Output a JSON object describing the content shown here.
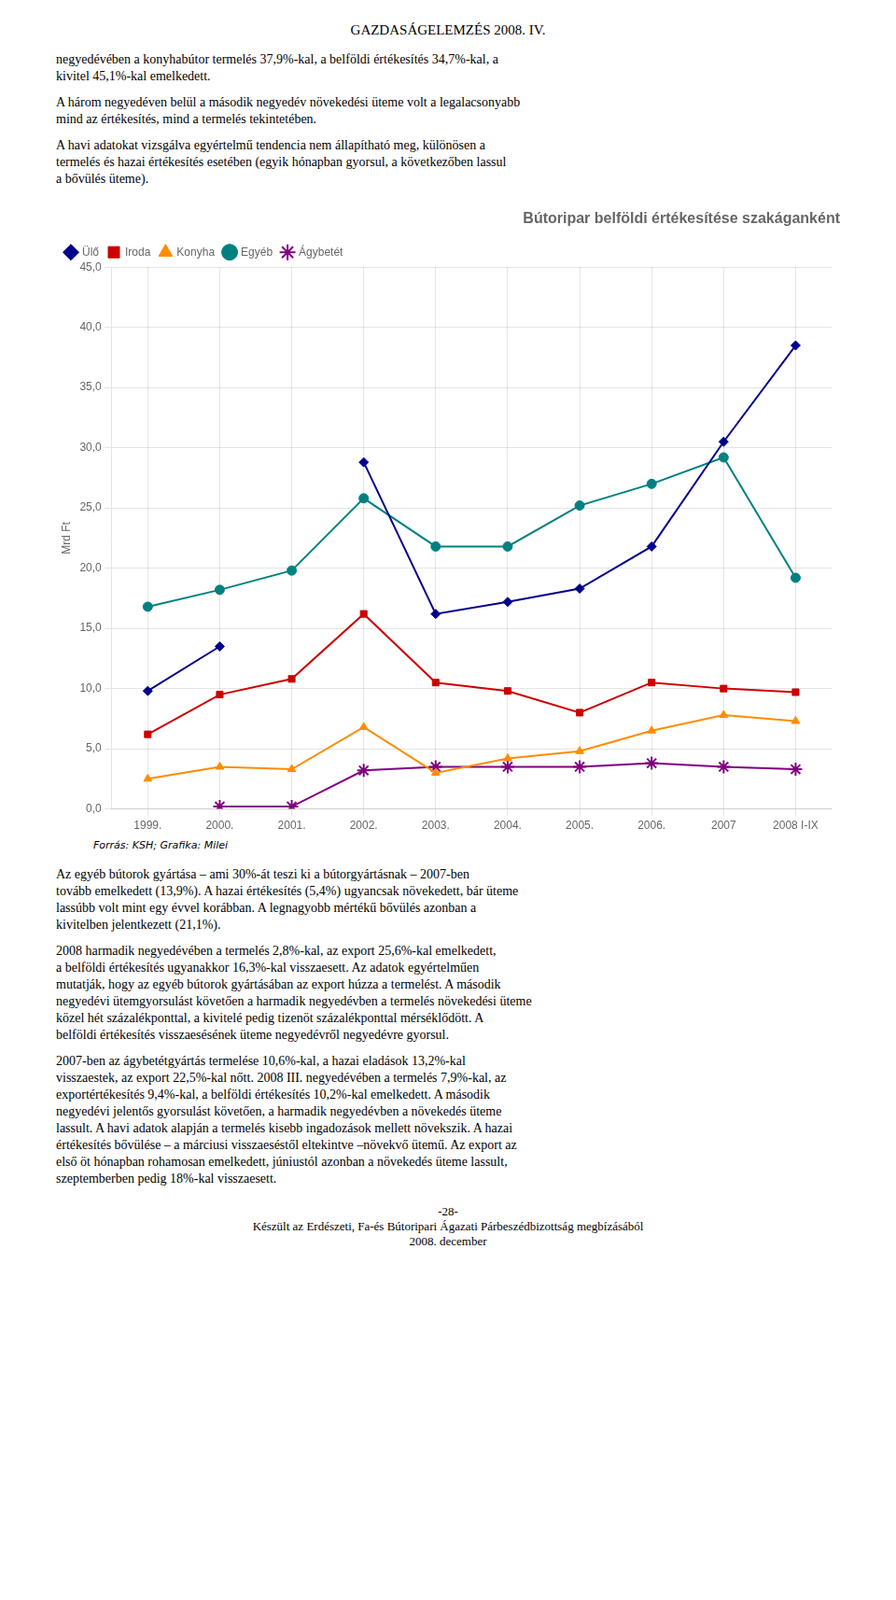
{
  "chart_data": {
    "type": "line",
    "title": "Bútoripar belföldi értékesítése szakáganként",
    "y_label": "Mrd Ft",
    "categories": [
      "1999.",
      "2000.",
      "2001.",
      "2002.",
      "2003.",
      "2004.",
      "2005.",
      "2006.",
      "2007",
      "2008 I-IX"
    ],
    "series": [
      {
        "name": "Ülő",
        "color": "#00008B",
        "marker": "diamond",
        "values": [
          9.8,
          13.5,
          null,
          28.8,
          16.2,
          17.2,
          18.3,
          21.8,
          30.5,
          38.5
        ]
      },
      {
        "name": "Iroda",
        "color": "#CC0000",
        "marker": "square",
        "values": [
          6.2,
          9.5,
          10.8,
          16.2,
          10.5,
          9.8,
          8.0,
          10.5,
          10.0,
          9.7
        ]
      },
      {
        "name": "Konyha",
        "color": "#FF8C00",
        "marker": "triangle",
        "values": [
          2.5,
          3.5,
          3.3,
          6.8,
          3.0,
          4.2,
          4.8,
          6.5,
          7.8,
          7.3
        ]
      },
      {
        "name": "Egyéb",
        "color": "#008080",
        "marker": "circle",
        "values": [
          16.8,
          18.2,
          19.8,
          25.8,
          21.8,
          21.8,
          25.2,
          27.0,
          29.2,
          19.2
        ]
      },
      {
        "name": "Ágybetét",
        "color": "#800080",
        "marker": "star",
        "values": [
          null,
          0.2,
          0.2,
          3.2,
          3.5,
          3.5,
          3.5,
          3.8,
          3.5,
          3.3
        ]
      }
    ],
    "ylim": [
      0,
      45
    ],
    "yticks": [
      {
        "value": 0,
        "label": "0,0"
      },
      {
        "value": 5,
        "label": "5,0"
      },
      {
        "value": 10,
        "label": "10,0"
      },
      {
        "value": 15,
        "label": "15,0"
      },
      {
        "value": 20,
        "label": "20,0"
      },
      {
        "value": 25,
        "label": "25,0"
      },
      {
        "value": 30,
        "label": "30,0"
      },
      {
        "value": 35,
        "label": "35,0"
      },
      {
        "value": 40,
        "label": "40,0"
      },
      {
        "value": 45,
        "label": "45,0"
      }
    ],
    "grid": true,
    "legend": "upper left",
    "annotations": [
      "GAZDASÁGELEMZÉS 2008. IV.",
      "negyedévében a konyhabútor termelés 37,9%-kal, a belföldi értékesítés 34,7%-kal, a\nkivitel 45,1%-kal emelkedett.",
      "A három negyedéven belül a második negyedév növekedési üteme volt a legalacsonyabb\nmind az értékesítés, mind a termelés tekintetében.",
      "A havi adatokat vizsgálva egyértelmű tendencia nem állapítható meg, különösen a\ntermelés és hazai értékesítés esetében (egyik hónapban gyorsul, a következőben lassul\na bővülés üteme).",
      "Forrás: KSH; Grafika: Milei",
      "Az egyéb bútorok gyártása – ami 30%-át teszi ki a bútorgyártásnak – 2007-ben\ntovább emelkedett (13,9%). A hazai értékesítés (5,4%) ugyancsak növekedett, bár üteme\nlassúbb volt mint egy évvel korábban. A legnagyobb mértékű bővülés azonban a\nkivitelben jelentkezett (21,1%).",
      "2008 harmadik negyedévében a termelés 2,8%-kal, az export 25,6%-kal emelkedett,\na belföldi értékesítés ugyanakkor 16,3%-kal visszaesett. Az adatok egyértelműen\nmutatják, hogy az egyéb bútorok gyártásában az export húzza a termelést. A második\nnegyedévi ütemgyorsulást követően a harmadik negyedévben a termelés növekedési üteme\nközel hét százalékponttal, a kivitelé pedig tizenöt százalékponttal mérséklődött. A\nbelföldi értékesítés visszaesésének üteme negyedévről negyedévre gyorsul.",
      "2007-ben az ágybetétgyártás termelése 10,6%-kal, a hazai eladások 13,2%-kal\nvisszaestek, az export 22,5%-kal nőtt. 2008 III. negyedévében a termelés 7,9%-kal, az\nexportértékesítés 9,4%-kal, a belföldi értékesítés 10,2%-kal emelkedett. A második\nnegyedévi jelentős gyorsulást követően, a harmadik negyedévben a növekedés üteme\nlassult. A havi adatok alapján a termelés kisebb ingadozások mellett növekszik. A hazai\nértékesítés bővülése – a márciusi visszaeséstől eltekintve –növekvő ütemű. Az export az\nelső öt hónapban rohamosan emelkedett, júniustól azonban a növekedés üteme lassult,\nszeptemberben pedig 18%-kal visszaesett.",
      "-28-",
      "Készült az Erdészeti, Fa-és Bútoripari Ágazati Párbeszédbizottság megbízásából",
      "2008. december"
    ]
  }
}
